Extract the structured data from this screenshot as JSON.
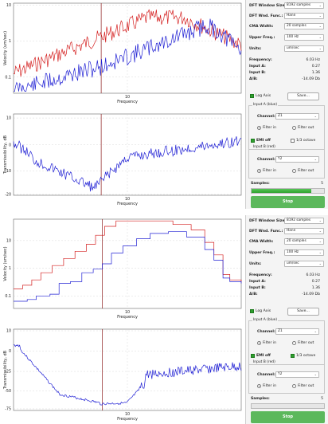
{
  "screens": [
    {
      "panel": {
        "dft_window_size_label": "DFT Window Size:",
        "dft_window_size_value": "8192 samples",
        "dft_wnd_func_label": "DFT Wnd. Func.:",
        "dft_wnd_func_value": "Hann",
        "cma_width_label": "CMA Width:",
        "cma_width_value": "20 samples",
        "upper_freq_label": "Upper Freq.:",
        "upper_freq_value": "100 Hz",
        "units_label": "Units:",
        "units_value": "um/sec",
        "frequency_label": "Frequency:",
        "frequency_value": "6.03 Hz",
        "input_a_label": "Input A:",
        "input_a_value": "0.27",
        "input_b_label": "Input B:",
        "input_b_value": "1.36",
        "ab_label": "A/B:",
        "ab_value": "-14.09 Db",
        "log_axis_label": "Log Axis",
        "save_label": "Save...",
        "group_a_title": "Input A (blue)",
        "group_a_channel_label": "Channel:",
        "group_a_channel_value": "Z1",
        "filter_in_label": "Filter in",
        "filter_out_label": "Filter out",
        "emi_off_label": "EMI off",
        "octave_label": "1/3 octave",
        "group_b_title": "Input B (red)",
        "group_b_channel_label": "Channel:",
        "group_b_channel_value": "Y2",
        "samples_label": "Samples:",
        "samples_value": "5",
        "samples_progress": 0.82,
        "stop_label": "Stop"
      },
      "chart_top": {
        "ylabel": "Velocity (um/sec)",
        "xlabel": "Frequency",
        "yticks": [
          "10",
          "1",
          "0.1"
        ],
        "xtick": "10"
      },
      "chart_bottom": {
        "ylabel": "Transmissibility, dB",
        "xlabel": "Frequency",
        "yticks": [
          "10",
          "0",
          "-10",
          "-20"
        ],
        "xtick": "10"
      }
    },
    {
      "panel": {
        "dft_window_size_label": "DFT Window Size:",
        "dft_window_size_value": "8192 samples",
        "dft_wnd_func_label": "DFT Wnd. Func.:",
        "dft_wnd_func_value": "Hann",
        "cma_width_label": "CMA Width:",
        "cma_width_value": "20 samples",
        "upper_freq_label": "Upper Freq.:",
        "upper_freq_value": "100 Hz",
        "units_label": "Units:",
        "units_value": "um/sec",
        "frequency_label": "Frequency:",
        "frequency_value": "6.03 Hz",
        "input_a_label": "Input A:",
        "input_a_value": "0.27",
        "input_b_label": "Input B:",
        "input_b_value": "1.36",
        "ab_label": "A/B:",
        "ab_value": "-14.09 Db",
        "log_axis_label": "Log Axis",
        "save_label": "Save...",
        "group_a_title": "Input A (blue)",
        "group_a_channel_label": "Channel:",
        "group_a_channel_value": "Z1",
        "filter_in_label": "Filter in",
        "filter_out_label": "Filter out",
        "emi_off_label": "EMI off",
        "octave_label": "1/3 octave",
        "group_b_title": "Input B (red)",
        "group_b_channel_label": "Channel:",
        "group_b_channel_value": "Y2",
        "samples_label": "Samples:",
        "samples_value": "5",
        "samples_progress": 0.0,
        "stop_label": "Stop"
      },
      "chart_top": {
        "ylabel": "Velocity (um/sec)",
        "xlabel": "Frequency",
        "yticks": [
          "10",
          "1",
          "0.1"
        ],
        "xtick": "10"
      },
      "chart_bottom": {
        "ylabel": "Transmissibility, dB",
        "xlabel": "Frequency",
        "yticks": [
          "10",
          "0",
          "-25",
          "-50",
          "-75"
        ],
        "xtick": "10"
      }
    }
  ]
}
